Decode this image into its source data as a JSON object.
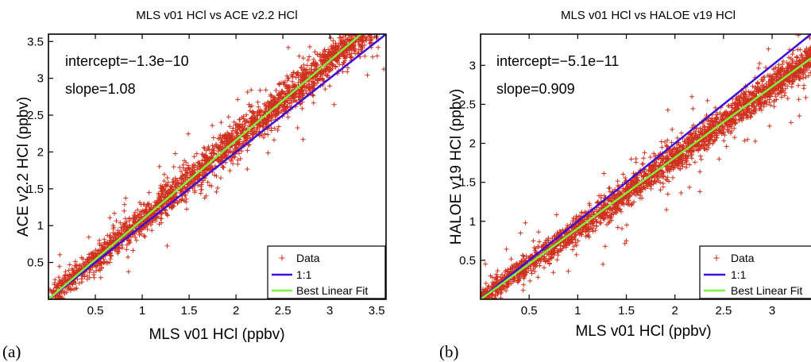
{
  "chart_data": [
    {
      "type": "scatter",
      "panel_label": "(a)",
      "title": "MLS v01 HCl vs ACE v2.2 HCl",
      "xlabel": "MLS v01 HCl (ppbv)",
      "ylabel": "ACE v2.2 HCl (ppbv)",
      "xlim": [
        0,
        3.6
      ],
      "ylim": [
        0,
        3.6
      ],
      "xticks": [
        0.5,
        1,
        1.5,
        2,
        2.5,
        3,
        3.5
      ],
      "yticks": [
        0.5,
        1,
        1.5,
        2,
        2.5,
        3,
        3.5
      ],
      "grid": false,
      "legend_position": "bottom-right",
      "annotations": [
        "intercept=−1.3e−10",
        "slope=1.08"
      ],
      "series": [
        {
          "name": "Data",
          "kind": "scatter",
          "marker": "+",
          "color": "#d0311e",
          "points_summary": {
            "count_approx": 9000,
            "x_range": [
              0,
              3.6
            ],
            "y_range": [
              0,
              3.6
            ],
            "trend_slope": 1.08,
            "trend_intercept": -1.3e-10,
            "scatter_sd": 0.12
          }
        },
        {
          "name": "1:1",
          "kind": "line",
          "color": "#3d0fd8",
          "x": [
            0,
            3.6
          ],
          "y": [
            0,
            3.6
          ]
        },
        {
          "name": "Best Linear Fit",
          "kind": "line",
          "color": "#7ef23a",
          "slope": 1.08,
          "intercept": -1.3e-10
        }
      ]
    },
    {
      "type": "scatter",
      "panel_label": "(b)",
      "title": "MLS v01 HCl vs HALOE v19 HCl",
      "xlabel": "MLS v01 HCl (ppbv)",
      "ylabel": "HALOE v19 HCl (ppbv)",
      "xlim": [
        0,
        3.4
      ],
      "ylim": [
        0,
        3.4
      ],
      "xticks": [
        0.5,
        1,
        1.5,
        2,
        2.5,
        3
      ],
      "yticks": [
        0.5,
        1,
        1.5,
        2,
        2.5,
        3
      ],
      "grid": false,
      "legend_position": "bottom-right",
      "annotations": [
        "intercept=−5.1e−11",
        "slope=0.909"
      ],
      "series": [
        {
          "name": "Data",
          "kind": "scatter",
          "marker": "+",
          "color": "#d0311e",
          "points_summary": {
            "count_approx": 9000,
            "x_range": [
              0,
              3.4
            ],
            "y_range": [
              0,
              3.4
            ],
            "trend_slope": 0.909,
            "trend_intercept": -5.1e-11,
            "scatter_sd": 0.1
          }
        },
        {
          "name": "1:1",
          "kind": "line",
          "color": "#3d0fd8",
          "x": [
            0,
            3.4
          ],
          "y": [
            0,
            3.4
          ]
        },
        {
          "name": "Best Linear Fit",
          "kind": "line",
          "color": "#7ef23a",
          "slope": 0.909,
          "intercept": -5.1e-11
        }
      ]
    }
  ]
}
